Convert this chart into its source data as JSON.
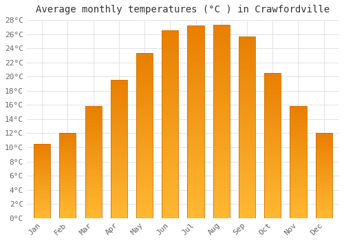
{
  "title": "Average monthly temperatures (°C ) in Crawfordville",
  "months": [
    "Jan",
    "Feb",
    "Mar",
    "Apr",
    "May",
    "Jun",
    "Jul",
    "Aug",
    "Sep",
    "Oct",
    "Nov",
    "Dec"
  ],
  "values": [
    10.5,
    12.0,
    15.8,
    19.5,
    23.3,
    26.5,
    27.2,
    27.3,
    25.7,
    20.5,
    15.8,
    12.0
  ],
  "bar_color_top": "#FFB833",
  "bar_color_bottom": "#E87E00",
  "bar_edge_color": "#CC7000",
  "ylim": [
    0,
    28
  ],
  "ytick_step": 2,
  "background_color": "#ffffff",
  "plot_bg_color": "#ffffff",
  "grid_color": "#dddddd",
  "title_fontsize": 10,
  "tick_fontsize": 8,
  "title_color": "#333333",
  "tick_color": "#666666"
}
